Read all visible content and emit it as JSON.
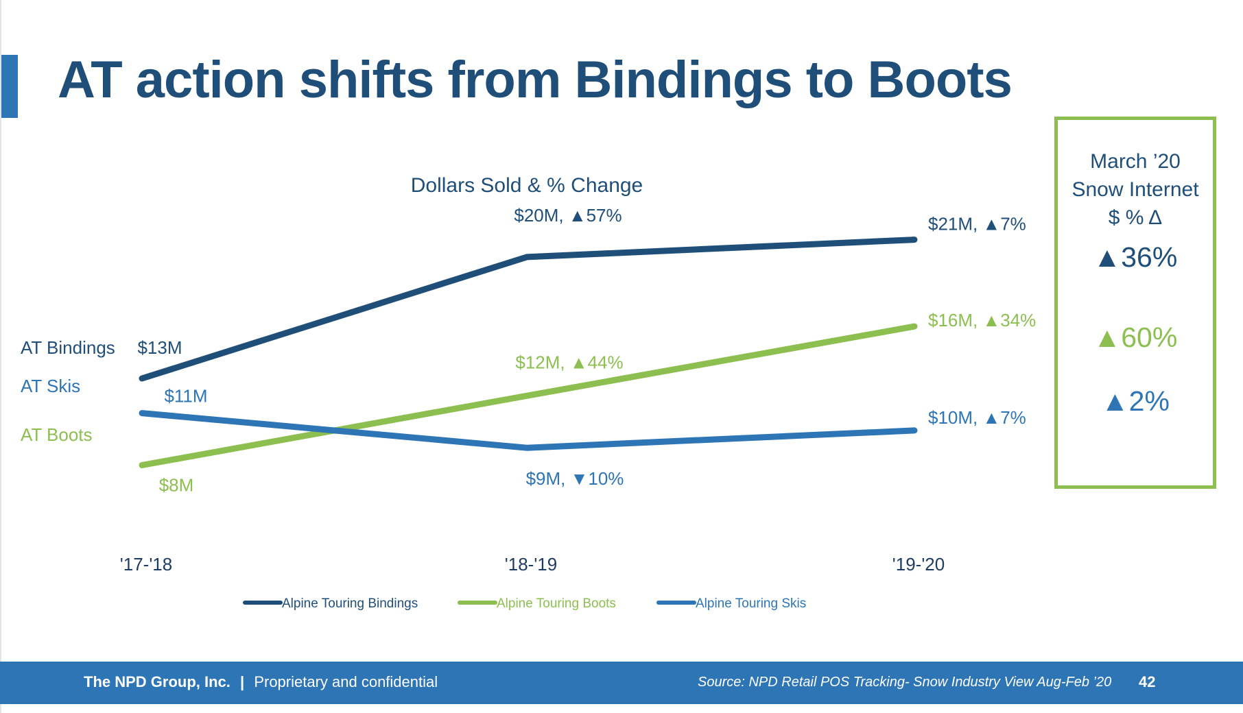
{
  "title": "AT action shifts from Bindings to Boots",
  "colors": {
    "bindings": "#1f4e79",
    "boots": "#8cbf4f",
    "skis": "#2e75b6",
    "accent": "#2e75b6"
  },
  "chart_data": {
    "type": "line",
    "title": "Dollars Sold & % Change",
    "categories": [
      "'17-'18",
      "'18-'19",
      "'19-'20"
    ],
    "ylabel": "",
    "grid": false,
    "legend_position": "bottom",
    "series": [
      {
        "name": "Alpine Touring Bindings",
        "short_label": "AT Bindings",
        "values": [
          13,
          20,
          21
        ],
        "labels": [
          "$13M",
          "$20M, ▲57%",
          "$21M, ▲7%"
        ]
      },
      {
        "name": "Alpine Touring Boots",
        "short_label": "AT Boots",
        "values": [
          8,
          12,
          16
        ],
        "labels": [
          "$8M",
          "$12M, ▲44%",
          "$16M, ▲34%"
        ]
      },
      {
        "name": "Alpine Touring Skis",
        "short_label": "AT Skis",
        "values": [
          11,
          9,
          10
        ],
        "labels": [
          "$11M",
          "$9M, ▼10%",
          "$10M, ▲7%"
        ]
      }
    ]
  },
  "side_panel": {
    "heading": [
      "March ’20",
      "Snow Internet",
      "$ % Δ"
    ],
    "values": [
      {
        "text": "▲36%",
        "color": "#1f4e79"
      },
      {
        "text": "▲60%",
        "color": "#8cbf4f"
      },
      {
        "text": "▲2%",
        "color": "#2e75b6"
      }
    ]
  },
  "footer": {
    "company": "The NPD Group, Inc.",
    "separator": "|",
    "tagline": "Proprietary and confidential",
    "source": "Source: NPD Retail POS Tracking- Snow Industry View Aug-Feb ’20",
    "page_number": "42"
  }
}
